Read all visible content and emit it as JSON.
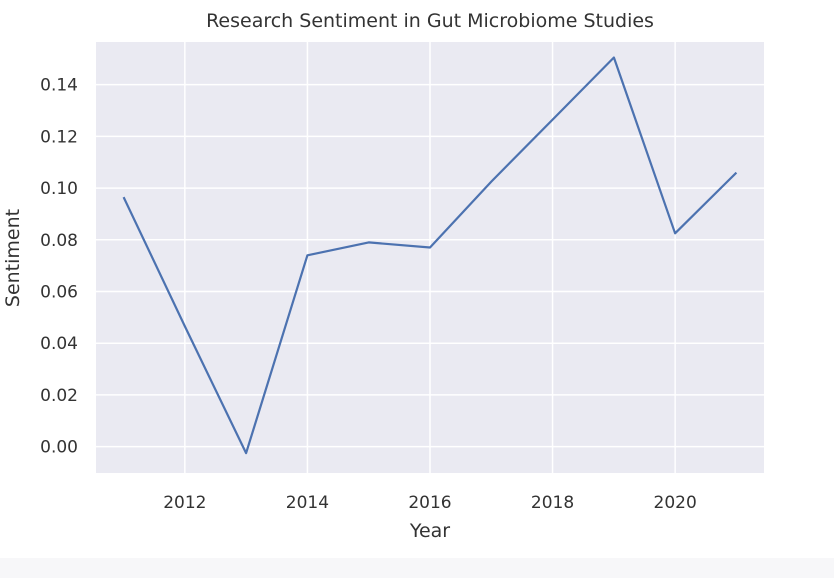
{
  "chart_data": {
    "type": "line",
    "title": "Research Sentiment in Gut Microbiome Studies",
    "xlabel": "Year",
    "ylabel": "Sentiment",
    "xlim": [
      2010.55,
      2021.45
    ],
    "ylim": [
      -0.0102,
      0.1565
    ],
    "x_ticks": [
      2012,
      2014,
      2016,
      2018,
      2020
    ],
    "y_ticks": [
      0.0,
      0.02,
      0.04,
      0.06,
      0.08,
      0.1,
      0.12,
      0.14
    ],
    "x_tick_labels": [
      "2012",
      "2014",
      "2016",
      "2018",
      "2020"
    ],
    "y_tick_labels": [
      "0.00",
      "0.02",
      "0.04",
      "0.06",
      "0.08",
      "0.10",
      "0.12",
      "0.14"
    ],
    "grid": true,
    "series": [
      {
        "x": [
          2011,
          2012,
          2013,
          2014,
          2015,
          2016,
          2017,
          2018,
          2019,
          2020,
          2021
        ],
        "y": [
          0.0965,
          0.0465,
          -0.0025,
          0.074,
          0.079,
          0.077,
          0.1025,
          0.1265,
          0.1505,
          0.0825,
          0.106
        ],
        "color": "#4c72b0"
      }
    ],
    "colors": {
      "plot_background": "#eaeaf2",
      "grid": "#ffffff",
      "line": "#4c72b0"
    }
  }
}
